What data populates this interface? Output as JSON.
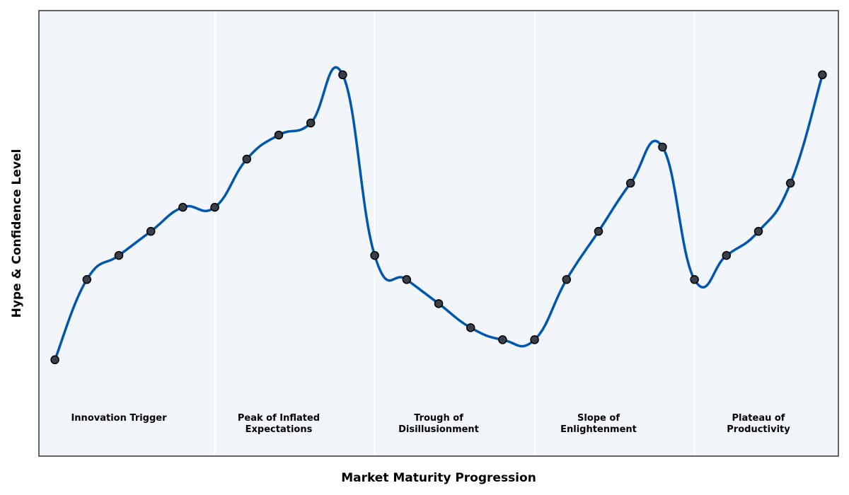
{
  "chart_data": {
    "type": "line",
    "title": "",
    "xlabel": "Market Maturity Progression",
    "ylabel": "Hype & Confidence Level",
    "x": [
      1,
      2,
      3,
      4,
      5,
      6,
      7,
      8,
      9,
      10,
      11,
      12,
      13,
      14,
      15,
      16,
      17,
      18,
      19,
      20,
      21,
      22,
      23,
      24,
      25
    ],
    "y": [
      20,
      40,
      46,
      52,
      58,
      58,
      70,
      76,
      79,
      91,
      46,
      40,
      34,
      28,
      25,
      25,
      40,
      52,
      64,
      73,
      40,
      46,
      52,
      64,
      91
    ],
    "ylim": [
      -4,
      107
    ],
    "xlim": [
      0.5,
      25.5
    ],
    "phase_boundaries": [
      6,
      11,
      16,
      21
    ],
    "phases": [
      {
        "label": [
          "Innovation Trigger"
        ],
        "center": 3
      },
      {
        "label": [
          "Peak of Inflated",
          "Expectations"
        ],
        "center": 8
      },
      {
        "label": [
          "Trough of",
          "Disillusionment"
        ],
        "center": 13
      },
      {
        "label": [
          "Slope of",
          "Enlightenment"
        ],
        "center": 18
      },
      {
        "label": [
          "Plateau of",
          "Productivity"
        ],
        "center": 23
      }
    ],
    "grid": false,
    "colors": {
      "line": "#0057b0",
      "marker_fill": "#3a3f4a",
      "marker_edge": "#000000",
      "plot_background": "#f2f5f9",
      "divider": "#ffffff",
      "frame": "#333333"
    }
  }
}
